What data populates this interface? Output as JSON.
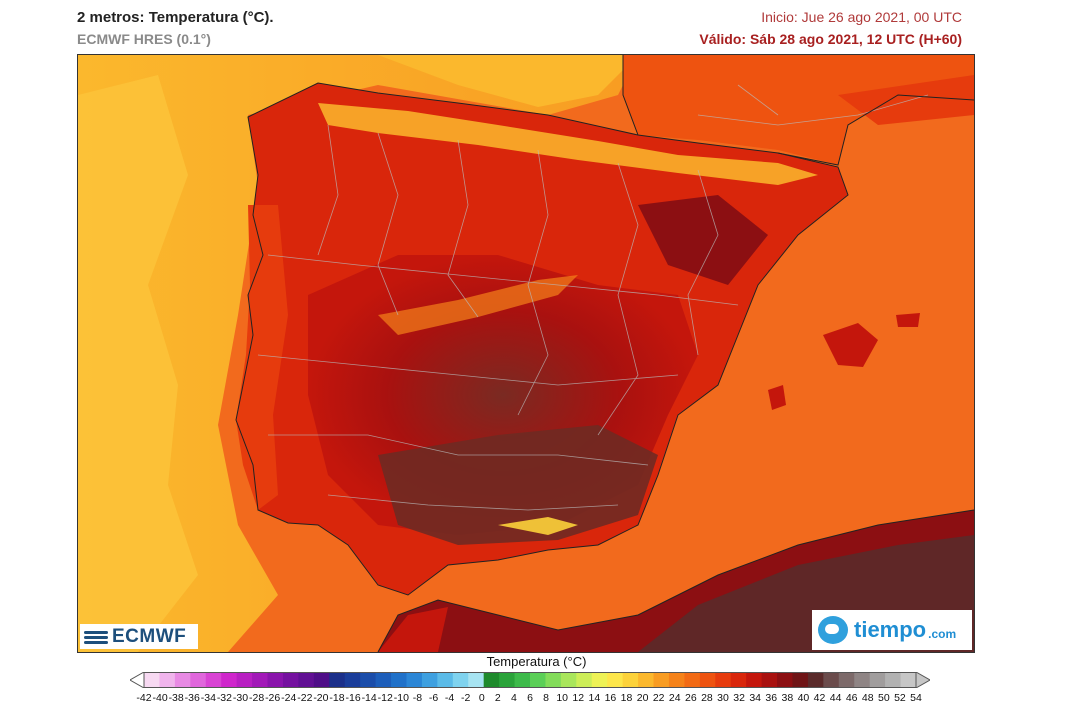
{
  "header": {
    "title": "2 metros: Temperatura (°C).",
    "model": "ECMWF HRES (0.1°)",
    "init": "Inicio: Jue 26 ago 2021, 00 UTC",
    "valid": "Válido: Sáb 28 ago 2021, 12 UTC (H+60)"
  },
  "logos": {
    "left": "ECMWF",
    "right_word": "tiempo",
    "right_suffix": ".com"
  },
  "legend": {
    "title": "Temperatura (°C)",
    "ticks": [
      "-42",
      "-40",
      "-38",
      "-36",
      "-34",
      "-32",
      "-30",
      "-28",
      "-26",
      "-24",
      "-22",
      "-20",
      "-18",
      "-16",
      "-14",
      "-12",
      "-10",
      "-8",
      "-6",
      "-4",
      "-2",
      "0",
      "2",
      "4",
      "6",
      "8",
      "10",
      "12",
      "14",
      "16",
      "18",
      "20",
      "22",
      "24",
      "26",
      "28",
      "30",
      "32",
      "34",
      "36",
      "38",
      "40",
      "42",
      "44",
      "46",
      "48",
      "50",
      "52",
      "54"
    ],
    "colors": [
      "#f7d9f2",
      "#f0b4ec",
      "#e88ae4",
      "#e066dc",
      "#d943d4",
      "#cf26cc",
      "#b81fc2",
      "#a219b8",
      "#8a14ac",
      "#7511a0",
      "#611094",
      "#4f0e88",
      "#1b2f8a",
      "#1a3d9a",
      "#1b4daa",
      "#1d5eba",
      "#2071c9",
      "#2b86d6",
      "#3ea0e0",
      "#5bbbe8",
      "#7fd3ef",
      "#a7e4f2",
      "#1e8a2c",
      "#2aa33a",
      "#3dba4a",
      "#5bcf57",
      "#83dc5a",
      "#a9e65b",
      "#cdee58",
      "#eef255",
      "#fde64a",
      "#fcd23a",
      "#fbb82d",
      "#f89c22",
      "#f58219",
      "#f26a14",
      "#ee5310",
      "#e63b0d",
      "#d9260b",
      "#c4160c",
      "#a9110f",
      "#8c0f12",
      "#6f1416",
      "#5a2a2a",
      "#6b4c4c",
      "#7d6a6a",
      "#8f8585",
      "#a09d9d",
      "#b2b2b2",
      "#c6c6c6"
    ]
  },
  "map": {
    "sea_color": "#f26a1d",
    "atlantic_color": "#f7a41f",
    "land_hot_color": "#c4160c",
    "land_very_hot_color": "#6f2a22",
    "mountain_color": "#fbb82d"
  }
}
